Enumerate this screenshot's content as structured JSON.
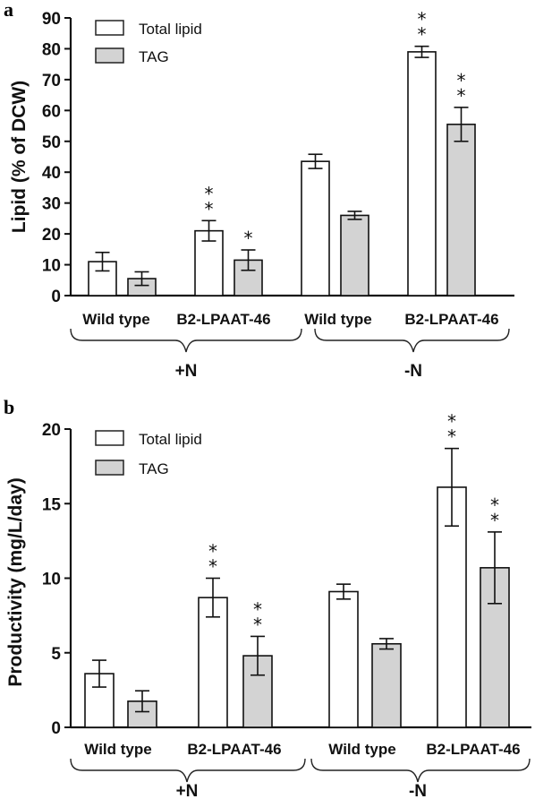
{
  "chart_data": [
    {
      "type": "bar",
      "panel_label": "a",
      "ylabel": "Lipid  (% of DCW)",
      "ylim": [
        0,
        90
      ],
      "yticks": [
        0,
        10,
        20,
        30,
        40,
        50,
        60,
        70,
        80,
        90
      ],
      "categories": [
        "Wild type",
        "B2-LPAAT-46",
        "Wild type",
        "B2-LPAAT-46"
      ],
      "groups": [
        "+N",
        "-N"
      ],
      "series": [
        {
          "name": "Total lipid",
          "fill": "#ffffff",
          "values": [
            11,
            21,
            43.5,
            79
          ],
          "errors": [
            3,
            3.3,
            2.3,
            1.8
          ],
          "significance": [
            "",
            "**",
            "",
            "**"
          ]
        },
        {
          "name": "TAG",
          "fill": "#d3d3d3",
          "values": [
            5.5,
            11.5,
            26,
            55.5
          ],
          "errors": [
            2.2,
            3.3,
            1.3,
            5.5
          ],
          "significance": [
            "",
            "*",
            "",
            "**"
          ]
        }
      ],
      "legend_position": "top-left",
      "grid": false
    },
    {
      "type": "bar",
      "panel_label": "b",
      "ylabel": "Productivity  (mg/L/day)",
      "ylim": [
        0,
        20
      ],
      "yticks": [
        0,
        5,
        10,
        15,
        20
      ],
      "categories": [
        "Wild type",
        "B2-LPAAT-46",
        "Wild type",
        "B2-LPAAT-46"
      ],
      "groups": [
        "+N",
        "-N"
      ],
      "series": [
        {
          "name": "Total lipid",
          "fill": "#ffffff",
          "values": [
            3.6,
            8.7,
            9.1,
            16.1
          ],
          "errors": [
            0.9,
            1.3,
            0.5,
            2.6
          ],
          "significance": [
            "",
            "**",
            "",
            "**"
          ]
        },
        {
          "name": "TAG",
          "fill": "#d3d3d3",
          "values": [
            1.75,
            4.8,
            5.6,
            10.7
          ],
          "errors": [
            0.7,
            1.3,
            0.35,
            2.4
          ],
          "significance": [
            "",
            "**",
            "",
            "**"
          ]
        }
      ],
      "legend_position": "top-left",
      "grid": false
    }
  ]
}
